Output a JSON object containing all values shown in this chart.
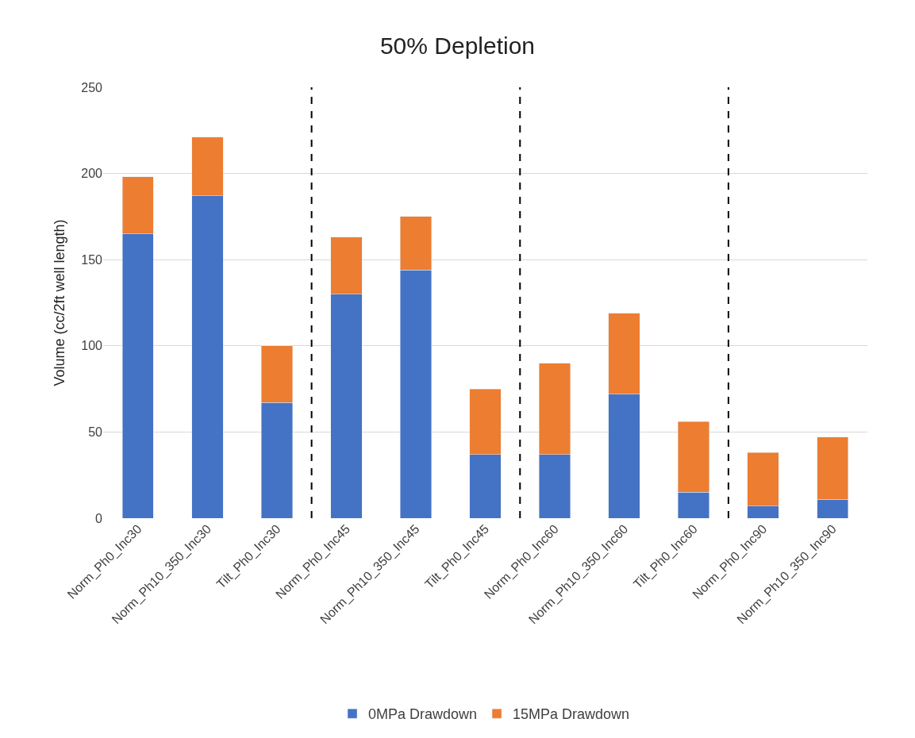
{
  "chart_data": {
    "type": "bar",
    "title": "50% Depletion",
    "ylabel": "Volume (cc/2ft well length)",
    "categories": [
      "Norm_Ph0_Inc30",
      "Norm_Ph10_350_Inc30",
      "Tilt_Ph0_Inc30",
      "Norm_Ph0_Inc45",
      "Norm_Ph10_350_Inc45",
      "Tilt_Ph0_Inc45",
      "Norm_Ph0_Inc60",
      "Norm_Ph10_350_Inc60",
      "Tilt_Ph0_Inc60",
      "Norm_Ph0_Inc90",
      "Norm_Ph10_350_Inc90"
    ],
    "series": [
      {
        "name": "0MPa Drawdown",
        "color": "#4472c4",
        "values": [
          165,
          187,
          67,
          130,
          144,
          37,
          37,
          72,
          15,
          7,
          11
        ]
      },
      {
        "name": "15MPa Drawdown",
        "color": "#ed7d31",
        "values": [
          33,
          34,
          33,
          33,
          31,
          38,
          53,
          47,
          41,
          31,
          36
        ]
      }
    ],
    "stacked": true,
    "ylim": [
      0,
      250
    ],
    "yticks": [
      0,
      50,
      100,
      150,
      200,
      250
    ],
    "grid": "y",
    "legend": "bottom"
  }
}
